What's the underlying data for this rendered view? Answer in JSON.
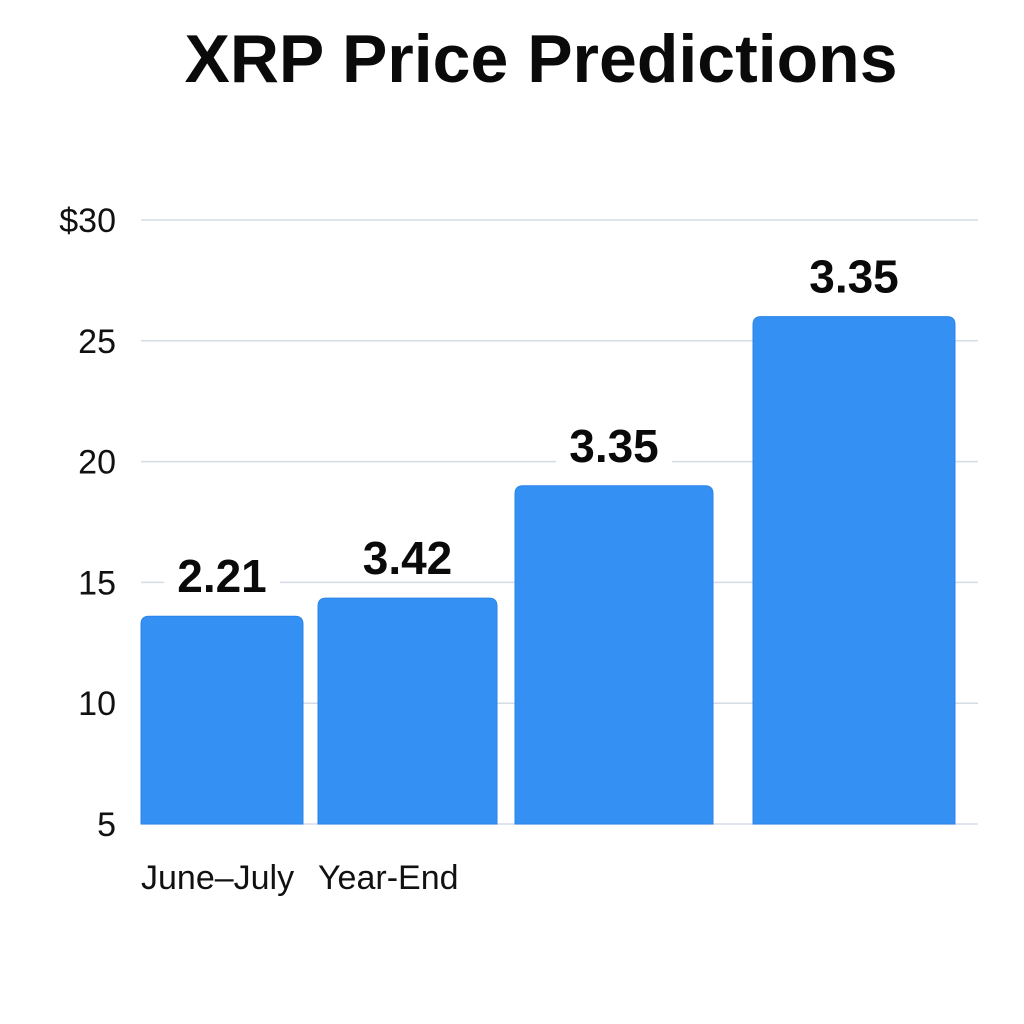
{
  "chart_data": {
    "type": "bar",
    "title": "XRP Price Predictions",
    "xlabel": "",
    "ylabel": "",
    "ylim": [
      5,
      30
    ],
    "y_ticks": [
      "5",
      "10",
      "15",
      "20",
      "25",
      "$30"
    ],
    "y_tick_values": [
      5,
      10,
      15,
      20,
      25,
      30
    ],
    "grid": true,
    "categories": [
      "June–July",
      "Year-End",
      "",
      ""
    ],
    "values": [
      13.6,
      14.35,
      19.0,
      26.0
    ],
    "data_labels": [
      "2.21",
      "3.42",
      "3.35",
      "3.35"
    ],
    "bar_color": "#3590F3",
    "grid_color": "#D5DCE6"
  }
}
